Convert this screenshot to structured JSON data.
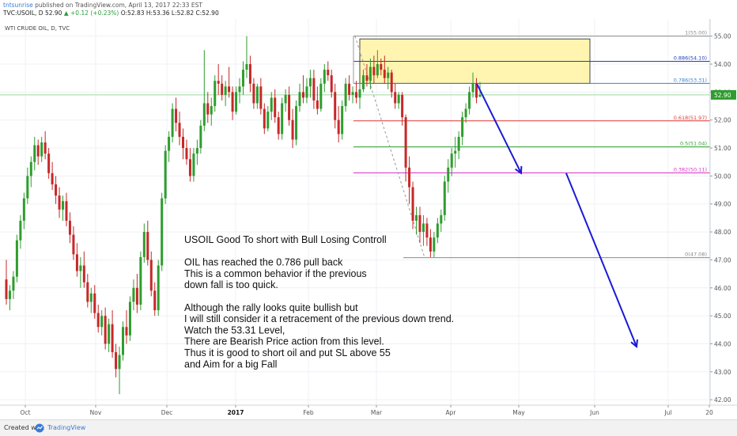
{
  "header": {
    "author": "tntsunrise",
    "published_text": "published on TradingView.com, April 13, 2017 22:33 EST",
    "symbol": "TVC:USOIL, D",
    "last": "52.90",
    "change": "+0.12 (+0.23%)",
    "ohlc": "O:52.83 H:53.36 L:52.82 C:52.90"
  },
  "footer": {
    "created_label": "Created with",
    "brand": "TradingView"
  },
  "chart_data": {
    "type": "candlestick",
    "title": "WTI CRUDE OIL, D, TVC",
    "x_tick_labels": [
      "Oct",
      "Nov",
      "Dec",
      "2017",
      "Feb",
      "Mar",
      "Apr",
      "May",
      "Jun",
      "Jul",
      "20"
    ],
    "y_tick_labels": [
      "42.00",
      "43.00",
      "44.00",
      "45.00",
      "46.00",
      "47.00",
      "48.00",
      "49.00",
      "50.00",
      "51.00",
      "52.00",
      "53.00",
      "54.00",
      "55.00"
    ],
    "ylim": [
      41.75,
      55.5
    ],
    "last_price": 52.9,
    "fib_levels": [
      {
        "label": "1(55.00)",
        "value": 55.0,
        "color": "#888888"
      },
      {
        "label": "0.886(54.10)",
        "value": 54.1,
        "color": "#1f3fbf"
      },
      {
        "label": "0.786(53.31)",
        "value": 53.31,
        "color": "#3b7fd0"
      },
      {
        "label": "0.618(51.97)",
        "value": 51.97,
        "color": "#e53935"
      },
      {
        "label": "0.5(51.04)",
        "value": 51.04,
        "color": "#2e9d2e"
      },
      {
        "label": "0.382(50.11)",
        "value": 50.11,
        "color": "#d633c4"
      },
      {
        "label": "0(47.08)",
        "value": 47.08,
        "color": "#888888"
      }
    ],
    "candles": [
      [
        46.3,
        47.0,
        45.4,
        45.6
      ],
      [
        45.6,
        46.1,
        45.2,
        45.9
      ],
      [
        45.9,
        46.6,
        45.6,
        46.4
      ],
      [
        46.4,
        47.9,
        46.2,
        47.7
      ],
      [
        47.7,
        48.6,
        47.4,
        48.4
      ],
      [
        48.4,
        49.4,
        48.1,
        49.2
      ],
      [
        49.2,
        50.3,
        49.0,
        50.0
      ],
      [
        50.0,
        50.7,
        49.6,
        50.5
      ],
      [
        50.5,
        51.4,
        50.2,
        51.1
      ],
      [
        51.1,
        51.3,
        50.4,
        50.7
      ],
      [
        50.7,
        51.4,
        50.5,
        51.2
      ],
      [
        51.2,
        51.6,
        50.6,
        50.8
      ],
      [
        50.8,
        51.0,
        49.9,
        50.1
      ],
      [
        50.1,
        50.5,
        49.5,
        49.7
      ],
      [
        49.7,
        50.0,
        49.0,
        49.3
      ],
      [
        49.3,
        49.6,
        48.5,
        48.8
      ],
      [
        48.8,
        49.3,
        48.4,
        49.1
      ],
      [
        49.1,
        49.4,
        48.2,
        48.4
      ],
      [
        48.4,
        48.7,
        47.6,
        47.9
      ],
      [
        47.9,
        48.2,
        47.0,
        47.2
      ],
      [
        47.2,
        47.6,
        46.4,
        46.6
      ],
      [
        46.6,
        47.1,
        46.0,
        46.8
      ],
      [
        46.8,
        47.3,
        46.0,
        46.2
      ],
      [
        46.2,
        46.5,
        45.3,
        45.5
      ],
      [
        45.5,
        46.0,
        45.1,
        45.8
      ],
      [
        45.8,
        46.1,
        44.9,
        45.1
      ],
      [
        45.1,
        45.4,
        44.4,
        44.6
      ],
      [
        44.6,
        45.2,
        44.3,
        45.0
      ],
      [
        45.0,
        45.3,
        43.8,
        44.0
      ],
      [
        44.0,
        44.9,
        43.7,
        44.7
      ],
      [
        44.7,
        45.2,
        43.5,
        43.7
      ],
      [
        43.7,
        44.0,
        42.8,
        43.1
      ],
      [
        43.1,
        43.9,
        42.2,
        43.6
      ],
      [
        43.6,
        44.8,
        43.4,
        44.6
      ],
      [
        44.6,
        45.2,
        44.0,
        44.3
      ],
      [
        44.3,
        45.7,
        44.1,
        45.5
      ],
      [
        45.5,
        46.3,
        45.2,
        46.0
      ],
      [
        46.0,
        46.5,
        45.1,
        45.4
      ],
      [
        45.4,
        47.3,
        45.2,
        47.1
      ],
      [
        47.1,
        48.3,
        46.9,
        48.0
      ],
      [
        48.0,
        48.4,
        46.8,
        47.0
      ],
      [
        47.0,
        47.3,
        45.7,
        45.9
      ],
      [
        45.9,
        46.2,
        45.0,
        45.2
      ],
      [
        45.2,
        47.0,
        45.0,
        46.8
      ],
      [
        46.8,
        49.4,
        46.6,
        49.2
      ],
      [
        49.2,
        51.1,
        49.0,
        50.9
      ],
      [
        50.9,
        51.6,
        50.5,
        51.4
      ],
      [
        51.4,
        52.6,
        51.2,
        52.4
      ],
      [
        52.4,
        52.8,
        51.6,
        51.9
      ],
      [
        51.9,
        52.3,
        51.1,
        51.4
      ],
      [
        51.4,
        51.7,
        50.6,
        51.0
      ],
      [
        51.0,
        51.3,
        50.4,
        50.6
      ],
      [
        50.6,
        51.0,
        49.8,
        50.0
      ],
      [
        50.0,
        51.0,
        49.8,
        50.8
      ],
      [
        50.8,
        51.3,
        50.4,
        51.0
      ],
      [
        51.0,
        52.0,
        50.8,
        51.8
      ],
      [
        51.8,
        54.5,
        51.6,
        52.6
      ],
      [
        52.6,
        53.0,
        51.9,
        52.2
      ],
      [
        52.2,
        52.8,
        51.8,
        52.5
      ],
      [
        52.5,
        53.6,
        52.3,
        53.4
      ],
      [
        53.4,
        54.0,
        52.9,
        53.3
      ],
      [
        53.3,
        53.6,
        52.7,
        52.9
      ],
      [
        52.9,
        53.4,
        52.5,
        53.2
      ],
      [
        53.2,
        53.9,
        52.8,
        53.0
      ],
      [
        53.0,
        53.2,
        52.0,
        52.3
      ],
      [
        52.3,
        53.2,
        52.2,
        53.0
      ],
      [
        53.0,
        53.5,
        52.6,
        53.2
      ],
      [
        53.2,
        54.1,
        52.9,
        53.8
      ],
      [
        53.8,
        55.0,
        53.5,
        54.0
      ],
      [
        54.0,
        54.3,
        53.0,
        53.3
      ],
      [
        53.3,
        53.5,
        52.4,
        52.6
      ],
      [
        52.6,
        53.3,
        52.4,
        53.2
      ],
      [
        53.2,
        53.5,
        52.2,
        52.4
      ],
      [
        52.4,
        52.6,
        51.5,
        51.7
      ],
      [
        51.7,
        52.5,
        51.6,
        52.3
      ],
      [
        52.3,
        53.0,
        52.0,
        52.8
      ],
      [
        52.8,
        53.1,
        51.9,
        52.1
      ],
      [
        52.1,
        52.3,
        51.3,
        51.5
      ],
      [
        51.5,
        52.8,
        51.3,
        52.6
      ],
      [
        52.6,
        53.1,
        52.3,
        52.9
      ],
      [
        52.9,
        53.2,
        51.8,
        52.0
      ],
      [
        52.0,
        52.4,
        51.0,
        51.3
      ],
      [
        51.3,
        52.7,
        51.1,
        52.5
      ],
      [
        52.5,
        53.3,
        52.3,
        53.0
      ],
      [
        53.0,
        53.6,
        52.6,
        52.8
      ],
      [
        52.8,
        53.5,
        52.6,
        53.2
      ],
      [
        53.2,
        53.8,
        52.8,
        53.5
      ],
      [
        53.5,
        53.8,
        52.4,
        52.7
      ],
      [
        52.7,
        53.2,
        52.2,
        52.4
      ],
      [
        52.4,
        53.5,
        52.3,
        53.3
      ],
      [
        53.3,
        54.0,
        53.0,
        53.8
      ],
      [
        53.8,
        54.1,
        53.4,
        53.6
      ],
      [
        53.6,
        53.8,
        52.8,
        53.0
      ],
      [
        53.0,
        53.3,
        51.7,
        52.0
      ],
      [
        52.0,
        52.5,
        51.2,
        51.5
      ],
      [
        51.5,
        52.7,
        51.3,
        52.5
      ],
      [
        52.5,
        53.5,
        52.3,
        53.3
      ],
      [
        53.3,
        53.6,
        52.7,
        52.9
      ],
      [
        52.9,
        53.2,
        52.6,
        53.0
      ],
      [
        53.0,
        53.4,
        52.6,
        52.8
      ],
      [
        52.8,
        53.3,
        52.4,
        53.1
      ],
      [
        53.1,
        53.8,
        53.0,
        53.6
      ],
      [
        53.6,
        54.0,
        53.2,
        53.4
      ],
      [
        53.4,
        54.2,
        53.1,
        53.9
      ],
      [
        53.9,
        54.3,
        53.3,
        53.6
      ],
      [
        53.6,
        54.5,
        53.5,
        54.0
      ],
      [
        54.0,
        54.2,
        53.6,
        53.8
      ],
      [
        53.8,
        54.3,
        53.3,
        53.5
      ],
      [
        53.5,
        53.9,
        53.1,
        53.7
      ],
      [
        53.7,
        53.8,
        52.8,
        53.0
      ],
      [
        53.0,
        53.3,
        52.4,
        52.6
      ],
      [
        52.6,
        53.0,
        52.4,
        52.9
      ],
      [
        52.9,
        53.0,
        51.8,
        52.1
      ],
      [
        52.1,
        52.2,
        49.8,
        50.3
      ],
      [
        50.3,
        50.7,
        49.0,
        49.6
      ],
      [
        49.6,
        49.8,
        48.1,
        48.4
      ],
      [
        48.4,
        48.9,
        47.9,
        48.6
      ],
      [
        48.6,
        48.9,
        47.6,
        48.0
      ],
      [
        48.0,
        48.6,
        47.5,
        48.3
      ],
      [
        48.3,
        48.5,
        47.5,
        47.8
      ],
      [
        47.8,
        48.1,
        47.1,
        47.3
      ],
      [
        47.3,
        48.0,
        47.1,
        47.8
      ],
      [
        47.8,
        48.5,
        47.6,
        48.3
      ],
      [
        48.3,
        48.8,
        48.0,
        48.6
      ],
      [
        48.6,
        50.0,
        48.4,
        49.8
      ],
      [
        49.8,
        50.6,
        49.4,
        50.3
      ],
      [
        50.3,
        51.0,
        50.0,
        50.8
      ],
      [
        50.8,
        51.4,
        50.3,
        50.9
      ],
      [
        50.9,
        51.6,
        50.6,
        51.4
      ],
      [
        51.4,
        52.3,
        51.1,
        52.1
      ],
      [
        52.1,
        52.6,
        51.9,
        52.4
      ],
      [
        52.4,
        53.2,
        52.2,
        53.0
      ],
      [
        53.0,
        53.7,
        52.8,
        53.3
      ],
      [
        53.3,
        53.5,
        52.6,
        52.8
      ],
      [
        52.83,
        53.36,
        52.82,
        52.9
      ]
    ],
    "annotation": {
      "lines": [
        "USOIL Good To short with Bull Losing Controll",
        "",
        "OIL has reached the 0.786 pull back",
        "This is a common behavior if the previous",
        "down fall is too quick.",
        "",
        "Although the rally looks quite bullish but",
        "I will still consider it a retracement of the previous down trend.",
        "Watch the 53.31 Level,",
        "There are Bearish Price action from this level.",
        "Thus it is good to short oil and put SL above 55",
        "and Aim for a big Fall"
      ]
    },
    "colors": {
      "up": "#2e9d2e",
      "down": "#c62828",
      "arrow": "#1a1ad6",
      "zone_fill": "#fff5b0",
      "zone_stroke": "#444444"
    },
    "grid": true
  }
}
